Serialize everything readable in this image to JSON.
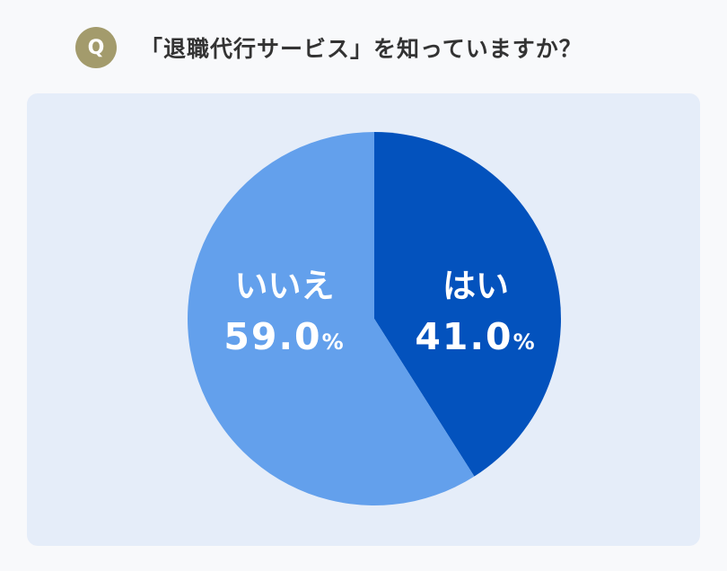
{
  "question": {
    "badge": "Q",
    "title": "「退職代行サービス」を知っていますか？"
  },
  "colors": {
    "background": "#f8f9fb",
    "panel": "#e5edf9",
    "badge": "#a39b6c",
    "yes": "#0352bd",
    "no": "#63a0ec"
  },
  "chart_data": {
    "type": "pie",
    "title": "「退職代行サービス」を知っていますか？",
    "slices": [
      {
        "label": "はい",
        "value": 41.0,
        "display": "41.0",
        "unit": "%",
        "color": "#0352bd"
      },
      {
        "label": "いいえ",
        "value": 59.0,
        "display": "59.0",
        "unit": "%",
        "color": "#63a0ec"
      }
    ],
    "start": "12 o'clock",
    "direction": "clockwise"
  }
}
